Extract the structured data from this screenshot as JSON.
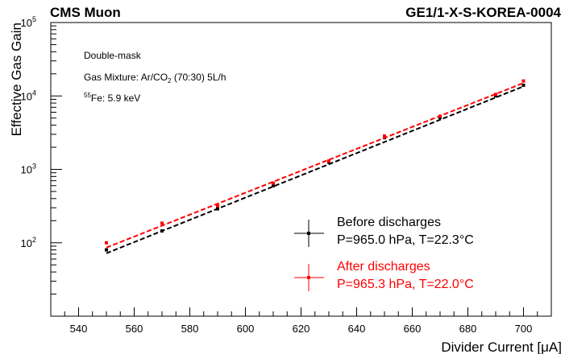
{
  "header": {
    "left": "CMS Muon",
    "right": "GE1/1-X-S-KOREA-0004"
  },
  "annotations": {
    "line1": "Double-mask",
    "line2_prefix": "Gas Mixture: Ar/CO",
    "line2_sub": "2",
    "line2_suffix": " (70:30) 5L/h",
    "line3_sup": "55",
    "line3_text": "Fe: 5.9 keV"
  },
  "colors": {
    "before": "#000000",
    "after": "#ff0000"
  },
  "chart_data": {
    "type": "scatter",
    "title": "",
    "xlabel": "Divider Current [μA]",
    "ylabel": "Effective Gas Gain",
    "xlim": [
      530,
      710
    ],
    "ylim": [
      10,
      100000
    ],
    "yscale": "log",
    "grid": false,
    "legend_position": "bottom-right",
    "x_ticks": [
      540,
      560,
      580,
      600,
      620,
      640,
      660,
      680,
      700
    ],
    "y_ticks": [
      {
        "value": 100,
        "base": "10",
        "exp": "2"
      },
      {
        "value": 1000,
        "base": "10",
        "exp": "3"
      },
      {
        "value": 10000,
        "base": "10",
        "exp": "4"
      },
      {
        "value": 100000,
        "base": "10",
        "exp": "5"
      }
    ],
    "series": [
      {
        "name": "Before discharges",
        "conditions": "P=965.0 hPa, T=22.3°C",
        "x": [
          550,
          570,
          590,
          610,
          630,
          650,
          670,
          690,
          700
        ],
        "y": [
          80,
          145,
          290,
          600,
          1250,
          2700,
          5100,
          10000,
          14000
        ],
        "fit": {
          "x": [
            550,
            700
          ],
          "y": [
            72,
            13500
          ]
        }
      },
      {
        "name": "After discharges",
        "conditions": "P=965.3 hPa, T=22.0°C",
        "x": [
          550,
          570,
          590,
          610,
          630,
          650,
          670,
          690,
          700
        ],
        "y": [
          100,
          185,
          320,
          650,
          1300,
          2850,
          5300,
          10500,
          16000
        ],
        "fit": {
          "x": [
            550,
            700
          ],
          "y": [
            86,
            15000
          ]
        }
      }
    ]
  }
}
